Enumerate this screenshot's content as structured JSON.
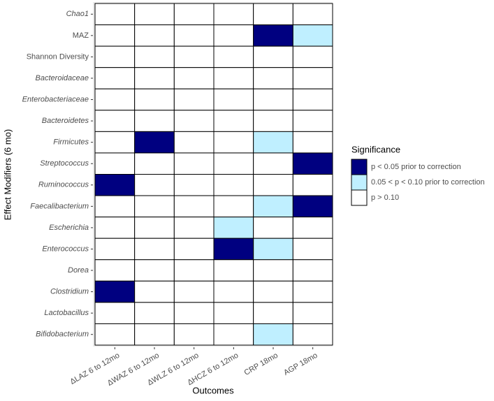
{
  "chart_data": {
    "type": "heatmap",
    "x_label": "Outcomes",
    "y_label": "Effect Modifiers (6 mo)",
    "columns": [
      "ΔLAZ 6 to 12mo",
      "ΔWAZ 6 to 12mo",
      "ΔWLZ 6 to 12mo",
      "ΔHCZ 6 to 12mo",
      "CRP 18mo",
      "AGP 18mo"
    ],
    "rows": [
      "Chao1",
      "MAZ",
      "Shannon Diversity",
      "Bacteroidaceae",
      "Enterobacteriaceae",
      "Bacteroidetes",
      "Firmicutes",
      "Streptococcus",
      "Ruminococcus",
      "Faecalibacterium",
      "Escherichia",
      "Enterococcus",
      "Dorea",
      "Clostridium",
      "Lactobacillus",
      "Bifidobacterium"
    ],
    "row_italic": [
      true,
      false,
      false,
      true,
      true,
      true,
      true,
      true,
      true,
      true,
      true,
      true,
      true,
      true,
      true,
      true
    ],
    "legend_title": "Significance",
    "levels": [
      {
        "name": "p < 0.05 prior to correction",
        "color": "#000080"
      },
      {
        "name": "0.05 < p < 0.10 prior to correction",
        "color": "#bfefff"
      },
      {
        "name": "p > 0.10",
        "color": "#ffffff"
      }
    ],
    "values": [
      [
        2,
        2,
        2,
        2,
        2,
        2
      ],
      [
        2,
        2,
        2,
        2,
        0,
        1
      ],
      [
        2,
        2,
        2,
        2,
        2,
        2
      ],
      [
        2,
        2,
        2,
        2,
        2,
        2
      ],
      [
        2,
        2,
        2,
        2,
        2,
        2
      ],
      [
        2,
        2,
        2,
        2,
        2,
        2
      ],
      [
        2,
        0,
        2,
        2,
        1,
        2
      ],
      [
        2,
        2,
        2,
        2,
        2,
        0
      ],
      [
        0,
        2,
        2,
        2,
        2,
        2
      ],
      [
        2,
        2,
        2,
        2,
        1,
        0
      ],
      [
        2,
        2,
        2,
        1,
        2,
        2
      ],
      [
        2,
        2,
        2,
        0,
        1,
        2
      ],
      [
        2,
        2,
        2,
        2,
        2,
        2
      ],
      [
        0,
        2,
        2,
        2,
        2,
        2
      ],
      [
        2,
        2,
        2,
        2,
        2,
        2
      ],
      [
        2,
        2,
        2,
        2,
        1,
        2
      ]
    ]
  }
}
